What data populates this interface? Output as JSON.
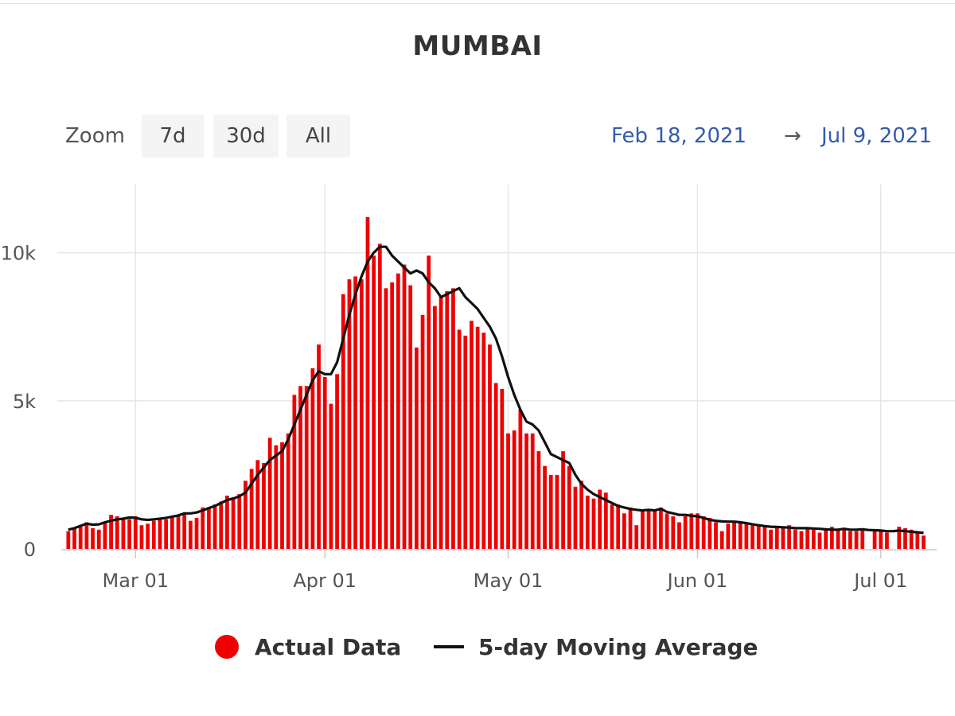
{
  "title": "MUMBAI",
  "zoom": {
    "label": "Zoom",
    "buttons": [
      "7d",
      "30d",
      "All"
    ]
  },
  "range": {
    "from": "Feb 18, 2021",
    "arrow": "→",
    "to": "Jul 9, 2021"
  },
  "legend": {
    "actual": "Actual Data",
    "moving_average": "5-day Moving Average"
  },
  "colors": {
    "bars": "#ee0000",
    "line": "#111111",
    "grid": "#e6e6e6",
    "range_text": "#335cad"
  },
  "chart_data": {
    "type": "bar",
    "x_start_date": "2021-02-18",
    "x_end_date": "2021-07-09",
    "x_ticks": [
      {
        "date": "2021-03-01",
        "label": "Mar 01"
      },
      {
        "date": "2021-04-01",
        "label": "Apr 01"
      },
      {
        "date": "2021-05-01",
        "label": "May 01"
      },
      {
        "date": "2021-06-01",
        "label": "Jun 01"
      },
      {
        "date": "2021-07-01",
        "label": "Jul 01"
      }
    ],
    "y_ticks": [
      {
        "value": 0,
        "label": "0"
      },
      {
        "value": 5000,
        "label": "5k"
      },
      {
        "value": 10000,
        "label": "10k"
      }
    ],
    "ylim": [
      0,
      12300
    ],
    "grid": true,
    "legend_position": "bottom-center",
    "series": [
      {
        "name": "Actual Data",
        "kind": "bar",
        "values": [
          600,
          700,
          800,
          900,
          700,
          650,
          900,
          1150,
          1100,
          1000,
          1000,
          1100,
          800,
          850,
          950,
          1050,
          1000,
          1100,
          1150,
          1200,
          950,
          1050,
          1400,
          1400,
          1500,
          1600,
          1800,
          1750,
          1850,
          2300,
          2700,
          3000,
          2900,
          3750,
          3500,
          3600,
          3900,
          5200,
          5500,
          5500,
          6100,
          6900,
          5800,
          4900,
          5900,
          8600,
          9100,
          9200,
          9100,
          11200,
          9900,
          10300,
          8800,
          9000,
          9300,
          9600,
          8900,
          6800,
          7900,
          9900,
          8200,
          8500,
          8700,
          8800,
          7400,
          7200,
          7700,
          7500,
          7300,
          6900,
          5600,
          5400,
          3900,
          4000,
          4700,
          3900,
          3900,
          3300,
          2800,
          2500,
          2500,
          3300,
          2800,
          2100,
          2300,
          1800,
          1700,
          2000,
          1900,
          1500,
          1500,
          1200,
          1400,
          800,
          1300,
          1300,
          1300,
          1400,
          1200,
          1100,
          900,
          1100,
          1200,
          1200,
          1100,
          1050,
          900,
          600,
          850,
          900,
          900,
          850,
          800,
          800,
          750,
          650,
          700,
          700,
          800,
          650,
          600,
          700,
          650,
          550,
          700,
          750,
          650,
          700,
          600,
          600,
          700,
          -200,
          600,
          650,
          550,
          -200,
          750,
          700,
          650,
          550,
          450
        ]
      },
      {
        "name": "5-day Moving Average",
        "kind": "line",
        "values": [
          650,
          700,
          780,
          850,
          820,
          830,
          900,
          950,
          1000,
          1020,
          1060,
          1050,
          1000,
          980,
          1000,
          1020,
          1050,
          1090,
          1130,
          1200,
          1200,
          1230,
          1300,
          1380,
          1450,
          1550,
          1650,
          1700,
          1780,
          1900,
          2200,
          2500,
          2750,
          3000,
          3150,
          3300,
          3700,
          4200,
          4700,
          5200,
          5700,
          6000,
          5900,
          5900,
          6300,
          7100,
          7900,
          8600,
          9200,
          9700,
          10000,
          10200,
          10200,
          9900,
          9700,
          9500,
          9300,
          9400,
          9300,
          9000,
          8800,
          8500,
          8600,
          8700,
          8800,
          8500,
          8300,
          8100,
          7800,
          7500,
          7100,
          6500,
          5800,
          5200,
          4700,
          4300,
          4200,
          4000,
          3600,
          3200,
          3100,
          3000,
          2900,
          2500,
          2200,
          2000,
          1850,
          1750,
          1650,
          1550,
          1450,
          1400,
          1350,
          1320,
          1300,
          1320,
          1300,
          1350,
          1250,
          1200,
          1150,
          1150,
          1120,
          1100,
          1050,
          980,
          950,
          930,
          920,
          920,
          900,
          870,
          830,
          800,
          770,
          750,
          740,
          730,
          720,
          700,
          700,
          700,
          690,
          680,
          660,
          650,
          650,
          680,
          650,
          650,
          660,
          640,
          630,
          620,
          600,
          600,
          620,
          600,
          580,
          560,
          540
        ]
      }
    ]
  }
}
